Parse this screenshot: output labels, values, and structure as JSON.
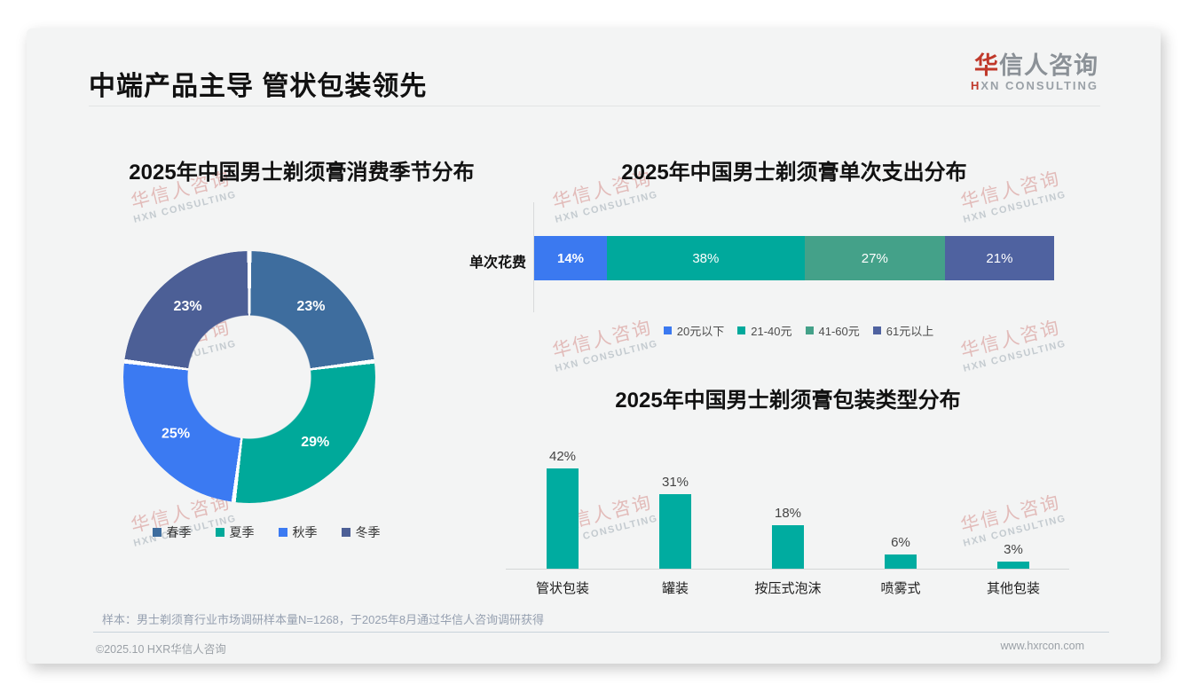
{
  "page": {
    "title": "中端产品主导 管状包装领先",
    "logo": {
      "cn_red": "华",
      "cn_rest": "信人咨询",
      "en_red": "H",
      "en_rest": "XN CONSULTING"
    },
    "watermark": {
      "line1": "华信人咨询",
      "line2": "HXN CONSULTING"
    },
    "footnote": "样本：男士剃须育行业市场调研样本量N=1268，于2025年8月通过华信人咨询调研获得",
    "footer_left": "©2025.10 HXR华信人咨询",
    "footer_right": "www.hxrcon.com"
  },
  "chart_data": [
    {
      "type": "pie",
      "variant": "donut",
      "title": "2025年中国男士剃须膏消费季节分布",
      "labels": [
        "春季",
        "夏季",
        "秋季",
        "冬季"
      ],
      "values": [
        23,
        29,
        25,
        23
      ],
      "value_labels": [
        "23%",
        "29%",
        "25%",
        "23%"
      ],
      "colors": [
        "#3E6D9E",
        "#00A99A",
        "#3B7AF2",
        "#4C5F96"
      ],
      "legend_position": "bottom",
      "start_angle_deg": 0,
      "direction": "clockwise"
    },
    {
      "type": "bar",
      "variant": "stacked-horizontal",
      "title": "2025年中国男士剃须膏单次支出分布",
      "row_label": "单次花费",
      "categories": [
        "20元以下",
        "21-40元",
        "41-60元",
        "61元以上"
      ],
      "values": [
        14,
        38,
        27,
        21
      ],
      "value_labels": [
        "14%",
        "38%",
        "27%",
        "21%"
      ],
      "colors": [
        "#3B79F0",
        "#00A99C",
        "#44A189",
        "#4F62A0"
      ],
      "legend_position": "bottom",
      "xlim": [
        0,
        100
      ]
    },
    {
      "type": "bar",
      "variant": "vertical",
      "title": "2025年中国男士剃须膏包装类型分布",
      "categories": [
        "管状包装",
        "罐装",
        "按压式泡沫",
        "喷雾式",
        "其他包装"
      ],
      "values": [
        42,
        31,
        18,
        6,
        3
      ],
      "value_labels": [
        "42%",
        "31%",
        "18%",
        "6%",
        "3%"
      ],
      "bar_color": "#00ACA0",
      "grid": false,
      "ylim": [
        0,
        50
      ]
    }
  ]
}
